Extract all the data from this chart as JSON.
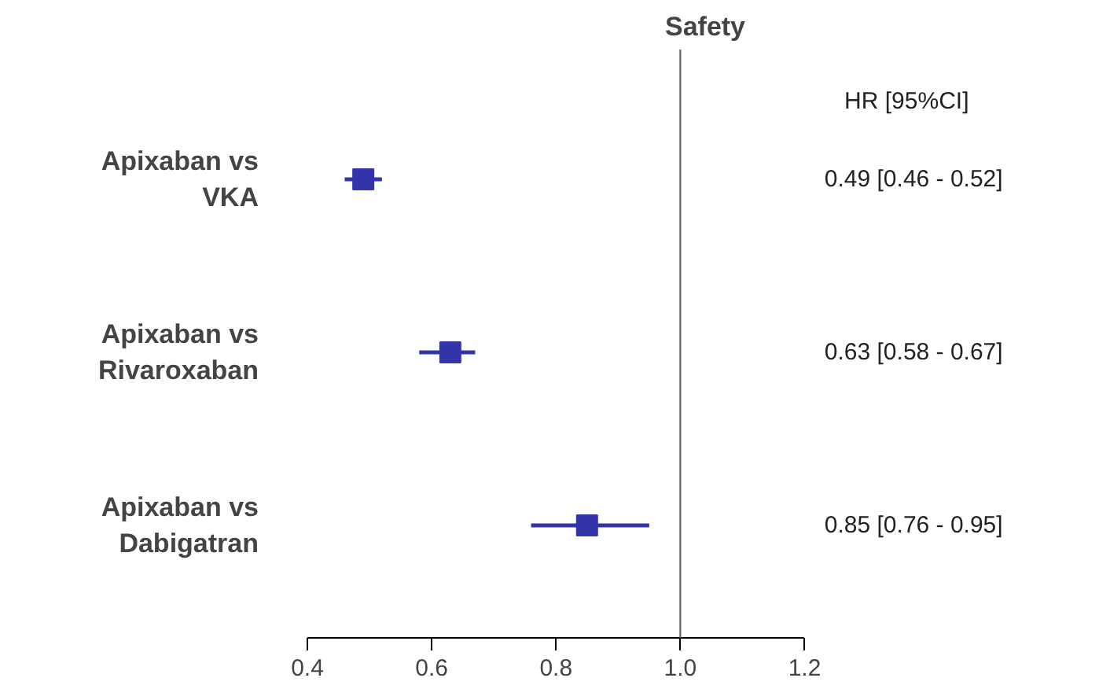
{
  "chart_data": {
    "type": "scatter",
    "orientation": "horizontal",
    "title": "Safety",
    "categories": [
      "Apixaban vs\nVKA",
      "Apixaban vs\nRivaroxaban",
      "Apixaban vs\nDabigatran"
    ],
    "values": [
      0.49,
      0.63,
      0.85
    ],
    "errors": [
      [
        0.46,
        0.52
      ],
      [
        0.58,
        0.67
      ],
      [
        0.76,
        0.95
      ]
    ],
    "value_labels": [
      "0.49 [0.46 - 0.52]",
      "0.63 [0.58 - 0.67]",
      "0.85 [0.76 - 0.95]"
    ],
    "color": "#3333aa",
    "marker": "square",
    "grid": false,
    "xlim": [
      0.4,
      1.2
    ],
    "xticks": [
      0.4,
      0.6,
      0.8,
      {
        "value": 1,
        "label": "1.0"
      },
      1.2
    ],
    "ref_lines": [
      {
        "axis": "x",
        "value": 1,
        "color": "#555555"
      }
    ],
    "annotations": [
      "HR [95%CI]"
    ]
  }
}
